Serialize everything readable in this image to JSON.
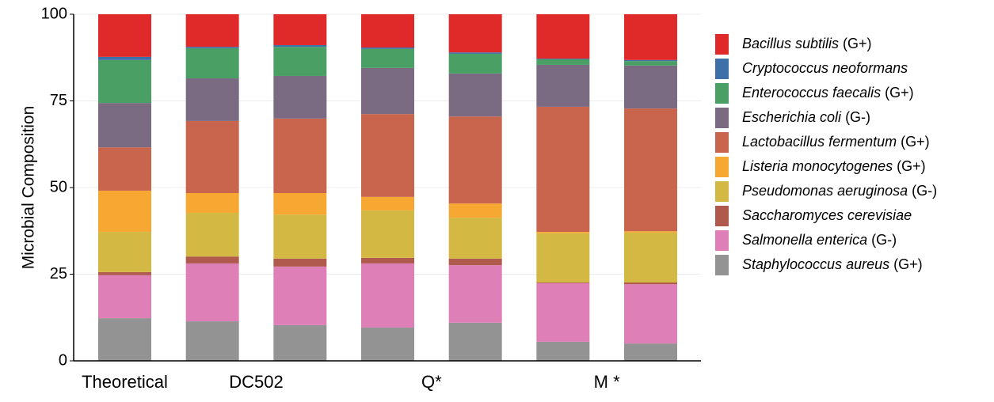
{
  "chart_data": {
    "type": "stacked_bar",
    "ylabel": "Microbial Composition",
    "categories": [
      "Theoretical",
      "DC502",
      null,
      "Q*",
      null,
      "M *",
      null
    ],
    "ylim": [
      0,
      100
    ],
    "yticks": [
      0,
      25,
      50,
      75,
      100
    ],
    "grid": true,
    "legend": "right",
    "series": [
      {
        "name": "Staphylococcus aureus (G+)",
        "color": "#939393",
        "values": [
          12.3,
          11.4,
          10.3,
          9.6,
          11.0,
          5.5,
          5.0
        ]
      },
      {
        "name": "Salmonella enterica (G-)",
        "color": "#de7fb8",
        "values": [
          12.4,
          16.7,
          16.9,
          18.5,
          16.6,
          16.9,
          17.1
        ]
      },
      {
        "name": "Saccharomyces cerevisiae",
        "color": "#b05a4d",
        "values": [
          0.9,
          2.0,
          2.3,
          1.6,
          1.9,
          0.2,
          0.5
        ]
      },
      {
        "name": "Pseudomonas aeruginosa (G-)",
        "color": "#d4b844",
        "values": [
          11.6,
          12.6,
          12.7,
          13.7,
          11.8,
          14.2,
          14.4
        ]
      },
      {
        "name": "Listeria monocytogenes (G+)",
        "color": "#f6a833",
        "values": [
          11.9,
          5.7,
          6.2,
          3.9,
          4.1,
          0.4,
          0.4
        ]
      },
      {
        "name": "Lactobacillus fermentum (G+)",
        "color": "#c9654d",
        "values": [
          12.5,
          20.8,
          21.5,
          23.9,
          25.1,
          36.1,
          35.4
        ]
      },
      {
        "name": "Escherichia coli (G-)",
        "color": "#7a6b82",
        "values": [
          12.8,
          12.3,
          12.3,
          13.3,
          12.4,
          12.1,
          12.4
        ]
      },
      {
        "name": "Enterococcus faecalis (G+)",
        "color": "#4a9f64",
        "values": [
          12.4,
          8.7,
          8.4,
          5.5,
          5.7,
          1.6,
          1.3
        ]
      },
      {
        "name": "Cryptococcus neoformans",
        "color": "#3d6fa8",
        "values": [
          0.9,
          0.4,
          0.5,
          0.4,
          0.4,
          0.2,
          0.3
        ]
      },
      {
        "name": "Bacillus subtilis (G+)",
        "color": "#e02a2a",
        "values": [
          12.3,
          9.4,
          8.9,
          9.6,
          11.0,
          12.8,
          13.2
        ]
      }
    ]
  }
}
